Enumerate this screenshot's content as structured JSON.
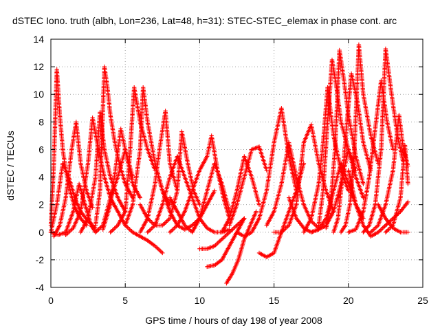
{
  "chart_data": {
    "type": "scatter",
    "title": "dSTEC Iono. truth (albh, Lon=236, Lat=48, h=31): STEC-STEC_elemax in phase cont. arc",
    "xlabel": "GPS time / hours of day 198 of year 2008",
    "ylabel": "dSTEC  / TECUs",
    "xlim": [
      0,
      25
    ],
    "ylim": [
      -4,
      14
    ],
    "xticks": [
      0,
      5,
      10,
      15,
      20,
      25
    ],
    "yticks": [
      -4,
      -2,
      0,
      2,
      4,
      6,
      8,
      10,
      12,
      14
    ],
    "grid": true,
    "marker": "+",
    "color": "#ff0000",
    "series": [
      {
        "x": [
          0.0,
          0.2,
          0.4,
          0.6,
          0.8,
          1.0,
          1.3,
          1.6,
          2.0,
          2.4
        ],
        "y": [
          0.5,
          5.0,
          11.8,
          8.5,
          6.0,
          4.5,
          3.0,
          1.8,
          1.0,
          0.5
        ]
      },
      {
        "x": [
          0.0,
          0.4,
          0.8,
          1.2,
          1.6,
          2.0,
          2.5,
          3.0
        ],
        "y": [
          0.0,
          2.0,
          5.0,
          4.0,
          2.5,
          1.5,
          0.8,
          0.3
        ]
      },
      {
        "x": [
          0.2,
          0.6,
          1.0,
          1.4,
          1.7,
          2.0,
          2.4,
          2.8
        ],
        "y": [
          -0.3,
          0.5,
          2.5,
          6.0,
          8.0,
          5.0,
          3.0,
          1.8
        ]
      },
      {
        "x": [
          0.0,
          0.5,
          1.0,
          1.5,
          1.9,
          2.3,
          2.7,
          3.0
        ],
        "y": [
          0.0,
          -0.2,
          0.0,
          1.5,
          3.5,
          2.0,
          0.5,
          0.0
        ]
      },
      {
        "x": [
          1.0,
          1.5,
          2.0,
          2.5,
          2.8,
          3.2,
          3.6,
          4.0
        ],
        "y": [
          -0.2,
          0.3,
          1.5,
          5.0,
          8.3,
          6.0,
          4.0,
          2.5
        ]
      },
      {
        "x": [
          2.0,
          2.5,
          3.0,
          3.3,
          3.6,
          4.0,
          4.5,
          5.0
        ],
        "y": [
          0.0,
          1.0,
          4.0,
          8.7,
          6.0,
          4.0,
          2.5,
          1.5
        ]
      },
      {
        "x": [
          3.0,
          3.3,
          3.6,
          3.8,
          4.0,
          4.3,
          4.6,
          5.0,
          5.5
        ],
        "y": [
          0.5,
          3.0,
          12.0,
          10.5,
          8.5,
          6.5,
          5.0,
          3.5,
          2.5
        ]
      },
      {
        "x": [
          3.5,
          4.0,
          4.4,
          4.7,
          5.0,
          5.5,
          6.0
        ],
        "y": [
          0.2,
          2.0,
          5.0,
          7.5,
          6.0,
          3.5,
          2.5
        ]
      },
      {
        "x": [
          3.0,
          3.5,
          4.0,
          4.5,
          5.0,
          5.5
        ],
        "y": [
          0.0,
          0.5,
          2.5,
          4.0,
          6.0,
          4.0
        ]
      },
      {
        "x": [
          4.0,
          4.5,
          5.0,
          5.3,
          5.6,
          6.0,
          6.5,
          7.0
        ],
        "y": [
          0.0,
          0.5,
          1.5,
          5.5,
          10.5,
          8.0,
          6.0,
          4.5
        ]
      },
      {
        "x": [
          5.0,
          5.5,
          6.0,
          6.2,
          6.5,
          7.0,
          7.5,
          8.0
        ],
        "y": [
          0.5,
          2.0,
          6.0,
          10.5,
          8.0,
          5.0,
          3.0,
          2.0
        ]
      },
      {
        "x": [
          4.0,
          4.5,
          5.0,
          5.5,
          6.0,
          6.5,
          7.0,
          7.5
        ],
        "y": [
          2.5,
          1.5,
          0.5,
          0.0,
          -0.3,
          -0.6,
          -1.0,
          -1.5
        ]
      },
      {
        "x": [
          6.0,
          6.5,
          7.0,
          7.3,
          7.7,
          8.0,
          8.5
        ],
        "y": [
          0.0,
          1.0,
          3.5,
          6.0,
          8.8,
          5.0,
          3.0
        ]
      },
      {
        "x": [
          6.0,
          6.5,
          7.0,
          7.5,
          8.0,
          8.5,
          8.8,
          9.2,
          9.6,
          10.0
        ],
        "y": [
          2.0,
          1.0,
          0.5,
          0.5,
          1.0,
          3.0,
          7.3,
          5.0,
          3.0,
          2.0
        ]
      },
      {
        "x": [
          7.0,
          7.5,
          8.0,
          8.5,
          9.0,
          9.5,
          10.0,
          10.5,
          11.0
        ],
        "y": [
          5.0,
          3.0,
          1.5,
          0.5,
          0.2,
          0.5,
          1.0,
          2.0,
          3.0
        ]
      },
      {
        "x": [
          8.0,
          8.5,
          9.0,
          9.5,
          10.0,
          10.5,
          10.8,
          11.2,
          11.6,
          12.0
        ],
        "y": [
          0.0,
          0.5,
          1.5,
          3.0,
          4.5,
          5.5,
          7.0,
          4.5,
          2.5,
          1.0
        ]
      },
      {
        "x": [
          6.5,
          7.0,
          7.5,
          8.0,
          8.5,
          9.0,
          9.5,
          10.0,
          10.5,
          11.0,
          11.5,
          12.0
        ],
        "y": [
          0.0,
          0.5,
          2.0,
          4.0,
          5.5,
          4.0,
          2.5,
          1.0,
          0.3,
          0.0,
          0.0,
          0.2
        ]
      },
      {
        "x": [
          8.0,
          8.5,
          9.0,
          9.5,
          10.0,
          10.5,
          11.0,
          11.5,
          12.0
        ],
        "y": [
          2.5,
          1.5,
          0.5,
          0.0,
          1.0,
          3.0,
          5.0,
          3.5,
          1.5
        ]
      },
      {
        "x": [
          10.0,
          10.5,
          11.0,
          11.5,
          12.0,
          12.5,
          13.0
        ],
        "y": [
          -1.2,
          -1.2,
          -1.0,
          -0.5,
          0.0,
          0.5,
          1.0
        ]
      },
      {
        "x": [
          10.5,
          11.0,
          11.5,
          12.0,
          12.5,
          13.0
        ],
        "y": [
          -2.5,
          -2.4,
          -2.0,
          -1.0,
          0.0,
          1.0
        ]
      },
      {
        "x": [
          11.8,
          12.2,
          12.6,
          13.0,
          13.4,
          13.8
        ],
        "y": [
          -3.7,
          -3.0,
          -2.0,
          -0.5,
          0.5,
          1.5
        ]
      },
      {
        "x": [
          12.0,
          12.5,
          13.0,
          13.5,
          14.0,
          14.5
        ],
        "y": [
          0.5,
          2.0,
          4.0,
          6.0,
          6.2,
          4.5
        ]
      },
      {
        "x": [
          11.5,
          12.0,
          12.5,
          13.0,
          13.5,
          14.0
        ],
        "y": [
          0.0,
          1.0,
          3.0,
          5.5,
          4.0,
          2.0
        ]
      },
      {
        "x": [
          12.5,
          13.0,
          13.5,
          14.0,
          14.5,
          15.0,
          15.5,
          16.0,
          16.5
        ],
        "y": [
          0.0,
          -0.3,
          0.0,
          1.0,
          3.0,
          6.5,
          9.0,
          5.5,
          3.0
        ]
      },
      {
        "x": [
          14.0,
          14.5,
          15.0,
          15.5,
          16.0,
          16.5,
          17.0
        ],
        "y": [
          -1.5,
          -1.8,
          -1.5,
          0.0,
          1.5,
          3.0,
          5.0
        ]
      },
      {
        "x": [
          14.5,
          15.0,
          15.5,
          16.0,
          16.5,
          17.0,
          17.5,
          18.0
        ],
        "y": [
          0.5,
          1.5,
          3.5,
          6.5,
          4.0,
          2.0,
          0.8,
          0.3
        ]
      },
      {
        "x": [
          15.0,
          15.5,
          16.0,
          16.5,
          17.0,
          17.5,
          18.0,
          18.5,
          19.0
        ],
        "y": [
          0.0,
          0.0,
          0.5,
          2.0,
          6.5,
          7.8,
          5.0,
          3.0,
          1.5
        ]
      },
      {
        "x": [
          16.0,
          16.5,
          17.0,
          17.5,
          18.0,
          18.5,
          19.0,
          19.5,
          20.0,
          20.5,
          21.0
        ],
        "y": [
          2.5,
          1.0,
          0.3,
          0.0,
          0.2,
          1.0,
          3.0,
          5.0,
          3.5,
          2.0,
          1.0
        ]
      },
      {
        "x": [
          17.0,
          17.5,
          18.0,
          18.3,
          18.6,
          19.0,
          19.5,
          20.0
        ],
        "y": [
          0.0,
          1.0,
          3.5,
          6.5,
          10.5,
          7.0,
          4.5,
          3.0
        ]
      },
      {
        "x": [
          18.0,
          18.3,
          18.6,
          18.9,
          19.2,
          19.5,
          20.0,
          20.5
        ],
        "y": [
          0.5,
          3.0,
          8.0,
          12.5,
          10.5,
          8.0,
          6.0,
          4.5
        ]
      },
      {
        "x": [
          18.5,
          18.8,
          19.1,
          19.4,
          19.7,
          20.0,
          20.5,
          21.0
        ],
        "y": [
          0.3,
          2.0,
          6.0,
          13.2,
          11.0,
          8.5,
          5.5,
          3.5
        ]
      },
      {
        "x": [
          19.0,
          19.3,
          19.6,
          19.9,
          20.2,
          20.6,
          21.0,
          21.5
        ],
        "y": [
          0.0,
          1.0,
          4.0,
          8.0,
          11.5,
          9.5,
          6.5,
          4.5
        ]
      },
      {
        "x": [
          19.5,
          19.8,
          20.1,
          20.4,
          20.7,
          21.0,
          21.5,
          22.0
        ],
        "y": [
          0.0,
          0.5,
          2.0,
          6.0,
          13.6,
          10.0,
          7.0,
          5.0
        ]
      },
      {
        "x": [
          20.0,
          20.5,
          21.0,
          21.4,
          21.8,
          22.2,
          22.6,
          23.0
        ],
        "y": [
          0.0,
          0.2,
          1.5,
          4.0,
          7.5,
          11.0,
          8.0,
          6.0
        ]
      },
      {
        "x": [
          21.0,
          21.4,
          21.8,
          22.2,
          22.5,
          22.9,
          23.3,
          23.7
        ],
        "y": [
          0.0,
          0.5,
          2.0,
          6.0,
          13.3,
          10.0,
          7.0,
          5.0
        ]
      },
      {
        "x": [
          21.5,
          22.0,
          22.5,
          23.0,
          23.4,
          23.7,
          24.0
        ],
        "y": [
          0.0,
          0.5,
          2.0,
          4.5,
          8.5,
          6.0,
          4.8
        ]
      },
      {
        "x": [
          22.5,
          23.0,
          23.5,
          23.8,
          24.0
        ],
        "y": [
          0.0,
          0.5,
          2.5,
          6.3,
          3.5
        ]
      },
      {
        "x": [
          20.0,
          20.5,
          21.0,
          21.5,
          22.0,
          22.5,
          23.0,
          23.5,
          24.0
        ],
        "y": [
          4.5,
          2.0,
          0.5,
          -0.3,
          0.0,
          0.5,
          1.0,
          1.5,
          2.2
        ]
      },
      {
        "x": [
          17.5,
          18.0,
          18.5,
          19.0,
          19.5,
          20.0,
          20.5,
          21.0
        ],
        "y": [
          0.0,
          0.2,
          0.5,
          1.5,
          3.5,
          6.0,
          4.0,
          2.5
        ]
      },
      {
        "x": [
          22.0,
          22.5,
          23.0,
          23.5,
          24.0
        ],
        "y": [
          2.0,
          1.0,
          0.3,
          0.0,
          0.0
        ]
      }
    ]
  }
}
